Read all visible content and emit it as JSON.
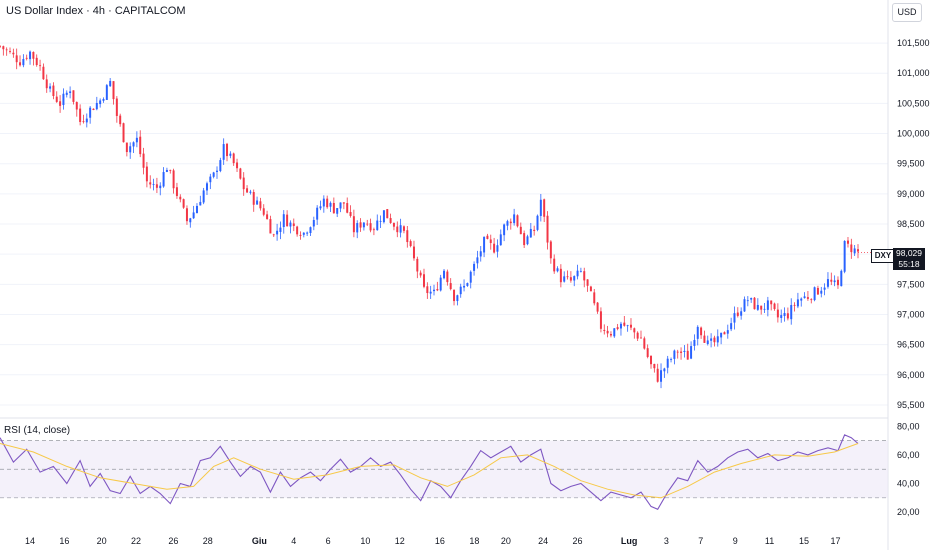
{
  "header": {
    "title": "US Dollar Index · 4h · CAPITALCOM",
    "currency": "USD"
  },
  "price_tag": {
    "symbol": "DXY",
    "last_price": "98,029",
    "countdown": "55:18"
  },
  "rsi": {
    "label": "RSI (14, close)"
  },
  "colors": {
    "up": "#2962ff",
    "down": "#f23645",
    "rsi_line": "#7e57c2",
    "rsi_ma": "#f7c948",
    "rsi_band": "#ede7f6"
  },
  "chart_data": [
    {
      "type": "candlestick",
      "title": "US Dollar Index · 4h · CAPITALCOM",
      "y_ticks": [
        "101,500",
        "101,000",
        "100,500",
        "100,000",
        "99,500",
        "99,000",
        "98,500",
        "98,000",
        "97,500",
        "97,000",
        "96,500",
        "96,000",
        "95,500"
      ],
      "ylim": [
        95.35,
        101.75
      ],
      "x_ticks": [
        "14",
        "16",
        "20",
        "22",
        "26",
        "28",
        "Giu",
        "4",
        "6",
        "10",
        "12",
        "16",
        "18",
        "20",
        "24",
        "26",
        "Lug",
        "3",
        "7",
        "9",
        "11",
        "15",
        "17"
      ],
      "close_path": [
        {
          "x": 0,
          "y": 101.45
        },
        {
          "x": 6,
          "y": 101.2
        },
        {
          "x": 9,
          "y": 101.35
        },
        {
          "x": 12,
          "y": 101.1
        },
        {
          "x": 15,
          "y": 100.7
        },
        {
          "x": 18,
          "y": 100.5
        },
        {
          "x": 21,
          "y": 100.75
        },
        {
          "x": 24,
          "y": 100.2
        },
        {
          "x": 27,
          "y": 100.4
        },
        {
          "x": 30,
          "y": 100.55
        },
        {
          "x": 33,
          "y": 100.85
        },
        {
          "x": 35,
          "y": 100.3
        },
        {
          "x": 38,
          "y": 99.75
        },
        {
          "x": 41,
          "y": 99.9
        },
        {
          "x": 44,
          "y": 99.2
        },
        {
          "x": 47,
          "y": 99.1
        },
        {
          "x": 50,
          "y": 99.45
        },
        {
          "x": 53,
          "y": 99.0
        },
        {
          "x": 56,
          "y": 98.55
        },
        {
          "x": 58,
          "y": 98.7
        },
        {
          "x": 61,
          "y": 99.05
        },
        {
          "x": 64,
          "y": 99.3
        },
        {
          "x": 67,
          "y": 99.75
        },
        {
          "x": 70,
          "y": 99.5
        },
        {
          "x": 73,
          "y": 99.1
        },
        {
          "x": 76,
          "y": 98.9
        },
        {
          "x": 79,
          "y": 98.7
        },
        {
          "x": 82,
          "y": 98.3
        },
        {
          "x": 85,
          "y": 98.6
        },
        {
          "x": 88,
          "y": 98.45
        },
        {
          "x": 91,
          "y": 98.35
        },
        {
          "x": 94,
          "y": 98.6
        },
        {
          "x": 97,
          "y": 98.9
        },
        {
          "x": 100,
          "y": 98.75
        },
        {
          "x": 103,
          "y": 98.85
        },
        {
          "x": 106,
          "y": 98.4
        },
        {
          "x": 109,
          "y": 98.55
        },
        {
          "x": 112,
          "y": 98.45
        },
        {
          "x": 115,
          "y": 98.7
        },
        {
          "x": 118,
          "y": 98.5
        },
        {
          "x": 121,
          "y": 98.35
        },
        {
          "x": 124,
          "y": 97.9
        },
        {
          "x": 127,
          "y": 97.4
        },
        {
          "x": 130,
          "y": 97.35
        },
        {
          "x": 133,
          "y": 97.75
        },
        {
          "x": 136,
          "y": 97.3
        },
        {
          "x": 139,
          "y": 97.45
        },
        {
          "x": 142,
          "y": 97.8
        },
        {
          "x": 145,
          "y": 98.2
        },
        {
          "x": 148,
          "y": 98.1
        },
        {
          "x": 151,
          "y": 98.45
        },
        {
          "x": 154,
          "y": 98.65
        },
        {
          "x": 157,
          "y": 98.2
        },
        {
          "x": 160,
          "y": 98.4
        },
        {
          "x": 162,
          "y": 98.9
        },
        {
          "x": 165,
          "y": 97.9
        },
        {
          "x": 168,
          "y": 97.6
        },
        {
          "x": 171,
          "y": 97.55
        },
        {
          "x": 174,
          "y": 97.7
        },
        {
          "x": 177,
          "y": 97.3
        },
        {
          "x": 180,
          "y": 96.8
        },
        {
          "x": 183,
          "y": 96.7
        },
        {
          "x": 186,
          "y": 96.85
        },
        {
          "x": 189,
          "y": 96.75
        },
        {
          "x": 192,
          "y": 96.6
        },
        {
          "x": 195,
          "y": 96.15
        },
        {
          "x": 197,
          "y": 95.95
        },
        {
          "x": 200,
          "y": 96.2
        },
        {
          "x": 203,
          "y": 96.4
        },
        {
          "x": 206,
          "y": 96.3
        },
        {
          "x": 209,
          "y": 96.85
        },
        {
          "x": 212,
          "y": 96.5
        },
        {
          "x": 215,
          "y": 96.55
        },
        {
          "x": 218,
          "y": 96.8
        },
        {
          "x": 221,
          "y": 97.05
        },
        {
          "x": 224,
          "y": 97.25
        },
        {
          "x": 227,
          "y": 97.1
        },
        {
          "x": 230,
          "y": 97.15
        },
        {
          "x": 233,
          "y": 96.95
        },
        {
          "x": 236,
          "y": 97.0
        },
        {
          "x": 239,
          "y": 97.25
        },
        {
          "x": 242,
          "y": 97.3
        },
        {
          "x": 245,
          "y": 97.4
        },
        {
          "x": 248,
          "y": 97.55
        },
        {
          "x": 251,
          "y": 97.45
        },
        {
          "x": 253,
          "y": 98.15
        },
        {
          "x": 255,
          "y": 98.1
        },
        {
          "x": 257,
          "y": 98.03
        }
      ]
    },
    {
      "type": "line",
      "title": "RSI (14, close)",
      "y_ticks": [
        "80,00",
        "60,00",
        "40,00",
        "20,00"
      ],
      "ylim": [
        18,
        83
      ],
      "bands": [
        70,
        50,
        30
      ],
      "series": [
        {
          "values": [
            {
              "x": 0,
              "y": 72
            },
            {
              "x": 4,
              "y": 55
            },
            {
              "x": 8,
              "y": 64
            },
            {
              "x": 12,
              "y": 48
            },
            {
              "x": 16,
              "y": 52
            },
            {
              "x": 20,
              "y": 40
            },
            {
              "x": 24,
              "y": 56
            },
            {
              "x": 27,
              "y": 38
            },
            {
              "x": 30,
              "y": 47
            },
            {
              "x": 33,
              "y": 35
            },
            {
              "x": 36,
              "y": 33
            },
            {
              "x": 39,
              "y": 45
            },
            {
              "x": 42,
              "y": 33
            },
            {
              "x": 45,
              "y": 38
            },
            {
              "x": 48,
              "y": 33
            },
            {
              "x": 51,
              "y": 26
            },
            {
              "x": 54,
              "y": 40
            },
            {
              "x": 57,
              "y": 38
            },
            {
              "x": 60,
              "y": 56
            },
            {
              "x": 63,
              "y": 58
            },
            {
              "x": 66,
              "y": 66
            },
            {
              "x": 69,
              "y": 55
            },
            {
              "x": 72,
              "y": 45
            },
            {
              "x": 75,
              "y": 52
            },
            {
              "x": 78,
              "y": 48
            },
            {
              "x": 81,
              "y": 34
            },
            {
              "x": 84,
              "y": 48
            },
            {
              "x": 87,
              "y": 38
            },
            {
              "x": 90,
              "y": 44
            },
            {
              "x": 93,
              "y": 48
            },
            {
              "x": 96,
              "y": 42
            },
            {
              "x": 99,
              "y": 50
            },
            {
              "x": 102,
              "y": 57
            },
            {
              "x": 105,
              "y": 48
            },
            {
              "x": 108,
              "y": 52
            },
            {
              "x": 111,
              "y": 58
            },
            {
              "x": 114,
              "y": 52
            },
            {
              "x": 117,
              "y": 55
            },
            {
              "x": 120,
              "y": 46
            },
            {
              "x": 123,
              "y": 36
            },
            {
              "x": 126,
              "y": 28
            },
            {
              "x": 129,
              "y": 42
            },
            {
              "x": 132,
              "y": 38
            },
            {
              "x": 135,
              "y": 30
            },
            {
              "x": 138,
              "y": 42
            },
            {
              "x": 141,
              "y": 52
            },
            {
              "x": 144,
              "y": 63
            },
            {
              "x": 147,
              "y": 58
            },
            {
              "x": 150,
              "y": 62
            },
            {
              "x": 153,
              "y": 66
            },
            {
              "x": 156,
              "y": 55
            },
            {
              "x": 159,
              "y": 60
            },
            {
              "x": 162,
              "y": 64
            },
            {
              "x": 165,
              "y": 40
            },
            {
              "x": 168,
              "y": 35
            },
            {
              "x": 171,
              "y": 38
            },
            {
              "x": 174,
              "y": 40
            },
            {
              "x": 177,
              "y": 34
            },
            {
              "x": 180,
              "y": 28
            },
            {
              "x": 183,
              "y": 34
            },
            {
              "x": 186,
              "y": 32
            },
            {
              "x": 189,
              "y": 30
            },
            {
              "x": 192,
              "y": 34
            },
            {
              "x": 195,
              "y": 24
            },
            {
              "x": 197,
              "y": 22
            },
            {
              "x": 200,
              "y": 34
            },
            {
              "x": 203,
              "y": 44
            },
            {
              "x": 206,
              "y": 42
            },
            {
              "x": 209,
              "y": 56
            },
            {
              "x": 212,
              "y": 48
            },
            {
              "x": 215,
              "y": 52
            },
            {
              "x": 218,
              "y": 58
            },
            {
              "x": 221,
              "y": 62
            },
            {
              "x": 224,
              "y": 64
            },
            {
              "x": 227,
              "y": 58
            },
            {
              "x": 230,
              "y": 61
            },
            {
              "x": 233,
              "y": 56
            },
            {
              "x": 236,
              "y": 58
            },
            {
              "x": 239,
              "y": 62
            },
            {
              "x": 242,
              "y": 60
            },
            {
              "x": 245,
              "y": 63
            },
            {
              "x": 248,
              "y": 65
            },
            {
              "x": 251,
              "y": 63
            },
            {
              "x": 253,
              "y": 74
            },
            {
              "x": 255,
              "y": 72
            },
            {
              "x": 257,
              "y": 68
            }
          ]
        },
        {
          "values": [
            {
              "x": 0,
              "y": 68
            },
            {
              "x": 10,
              "y": 62
            },
            {
              "x": 20,
              "y": 52
            },
            {
              "x": 30,
              "y": 44
            },
            {
              "x": 40,
              "y": 40
            },
            {
              "x": 50,
              "y": 36
            },
            {
              "x": 58,
              "y": 38
            },
            {
              "x": 64,
              "y": 52
            },
            {
              "x": 70,
              "y": 58
            },
            {
              "x": 78,
              "y": 50
            },
            {
              "x": 88,
              "y": 43
            },
            {
              "x": 98,
              "y": 46
            },
            {
              "x": 108,
              "y": 52
            },
            {
              "x": 118,
              "y": 53
            },
            {
              "x": 126,
              "y": 44
            },
            {
              "x": 134,
              "y": 38
            },
            {
              "x": 142,
              "y": 46
            },
            {
              "x": 150,
              "y": 58
            },
            {
              "x": 158,
              "y": 60
            },
            {
              "x": 166,
              "y": 52
            },
            {
              "x": 174,
              "y": 42
            },
            {
              "x": 182,
              "y": 36
            },
            {
              "x": 190,
              "y": 32
            },
            {
              "x": 198,
              "y": 30
            },
            {
              "x": 206,
              "y": 38
            },
            {
              "x": 214,
              "y": 48
            },
            {
              "x": 222,
              "y": 54
            },
            {
              "x": 232,
              "y": 60
            },
            {
              "x": 242,
              "y": 59
            },
            {
              "x": 250,
              "y": 62
            },
            {
              "x": 257,
              "y": 68
            }
          ]
        }
      ]
    }
  ]
}
